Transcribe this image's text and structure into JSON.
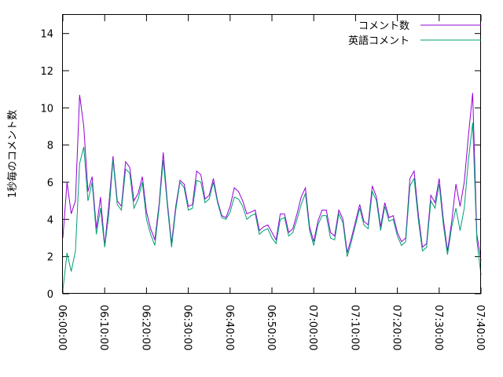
{
  "chart_data": {
    "type": "line",
    "ylabel": "1秒毎のコメント数",
    "xlim": [
      "06:00:00",
      "07:40:00"
    ],
    "ylim": [
      0,
      15
    ],
    "grid": false,
    "legend_position": "top-right",
    "x_tick_labels": [
      "06:00:00",
      "06:10:00",
      "06:20:00",
      "06:30:00",
      "06:40:00",
      "06:50:00",
      "07:00:00",
      "07:10:00",
      "07:20:00",
      "07:30:00",
      "07:40:00"
    ],
    "y_tick_labels": [
      "0",
      "2",
      "4",
      "6",
      "8",
      "10",
      "12",
      "14"
    ],
    "colors": {
      "comments": "#9400d3",
      "english": "#009e73"
    },
    "series": [
      {
        "name": "コメント数",
        "color": "#9400d3",
        "points": [
          [
            "06:00:00",
            3.0
          ],
          [
            "06:01:00",
            6.0
          ],
          [
            "06:02:00",
            4.3
          ],
          [
            "06:03:00",
            5.0
          ],
          [
            "06:04:00",
            10.7
          ],
          [
            "06:05:00",
            9.0
          ],
          [
            "06:06:00",
            5.5
          ],
          [
            "06:07:00",
            6.3
          ],
          [
            "06:08:00",
            3.5
          ],
          [
            "06:09:00",
            5.2
          ],
          [
            "06:10:00",
            2.6
          ],
          [
            "06:11:00",
            4.8
          ],
          [
            "06:12:00",
            7.4
          ],
          [
            "06:13:00",
            5.0
          ],
          [
            "06:14:00",
            4.7
          ],
          [
            "06:15:00",
            7.1
          ],
          [
            "06:16:00",
            6.8
          ],
          [
            "06:17:00",
            5.0
          ],
          [
            "06:18:00",
            5.4
          ],
          [
            "06:19:00",
            6.3
          ],
          [
            "06:20:00",
            4.4
          ],
          [
            "06:21:00",
            3.5
          ],
          [
            "06:22:00",
            2.9
          ],
          [
            "06:23:00",
            4.8
          ],
          [
            "06:24:00",
            7.6
          ],
          [
            "06:25:00",
            4.9
          ],
          [
            "06:26:00",
            2.7
          ],
          [
            "06:27:00",
            4.7
          ],
          [
            "06:28:00",
            6.1
          ],
          [
            "06:29:00",
            5.9
          ],
          [
            "06:30:00",
            4.7
          ],
          [
            "06:31:00",
            4.8
          ],
          [
            "06:32:00",
            6.6
          ],
          [
            "06:33:00",
            6.4
          ],
          [
            "06:34:00",
            5.1
          ],
          [
            "06:35:00",
            5.3
          ],
          [
            "06:36:00",
            6.2
          ],
          [
            "06:37:00",
            5.0
          ],
          [
            "06:38:00",
            4.2
          ],
          [
            "06:39:00",
            4.1
          ],
          [
            "06:40:00",
            4.7
          ],
          [
            "06:41:00",
            5.7
          ],
          [
            "06:42:00",
            5.5
          ],
          [
            "06:43:00",
            5.0
          ],
          [
            "06:44:00",
            4.3
          ],
          [
            "06:45:00",
            4.4
          ],
          [
            "06:46:00",
            4.5
          ],
          [
            "06:47:00",
            3.4
          ],
          [
            "06:48:00",
            3.6
          ],
          [
            "06:49:00",
            3.7
          ],
          [
            "06:50:00",
            3.3
          ],
          [
            "06:51:00",
            2.9
          ],
          [
            "06:52:00",
            4.3
          ],
          [
            "06:53:00",
            4.3
          ],
          [
            "06:54:00",
            3.3
          ],
          [
            "06:55:00",
            3.5
          ],
          [
            "06:56:00",
            4.3
          ],
          [
            "06:57:00",
            5.2
          ],
          [
            "06:58:00",
            5.7
          ],
          [
            "06:59:00",
            3.6
          ],
          [
            "07:00:00",
            2.8
          ],
          [
            "07:01:00",
            3.9
          ],
          [
            "07:02:00",
            4.5
          ],
          [
            "07:03:00",
            4.5
          ],
          [
            "07:04:00",
            3.3
          ],
          [
            "07:05:00",
            3.1
          ],
          [
            "07:06:00",
            4.5
          ],
          [
            "07:07:00",
            4.0
          ],
          [
            "07:08:00",
            2.2
          ],
          [
            "07:09:00",
            3.0
          ],
          [
            "07:10:00",
            3.9
          ],
          [
            "07:11:00",
            4.8
          ],
          [
            "07:12:00",
            3.9
          ],
          [
            "07:13:00",
            3.7
          ],
          [
            "07:14:00",
            5.8
          ],
          [
            "07:15:00",
            5.2
          ],
          [
            "07:16:00",
            3.6
          ],
          [
            "07:17:00",
            4.9
          ],
          [
            "07:18:00",
            4.1
          ],
          [
            "07:19:00",
            4.2
          ],
          [
            "07:20:00",
            3.3
          ],
          [
            "07:21:00",
            2.8
          ],
          [
            "07:22:00",
            3.0
          ],
          [
            "07:23:00",
            6.2
          ],
          [
            "07:24:00",
            6.6
          ],
          [
            "07:25:00",
            4.3
          ],
          [
            "07:26:00",
            2.5
          ],
          [
            "07:27:00",
            2.7
          ],
          [
            "07:28:00",
            5.3
          ],
          [
            "07:29:00",
            4.9
          ],
          [
            "07:30:00",
            6.2
          ],
          [
            "07:31:00",
            4.0
          ],
          [
            "07:32:00",
            2.3
          ],
          [
            "07:33:00",
            3.9
          ],
          [
            "07:34:00",
            5.9
          ],
          [
            "07:35:00",
            4.7
          ],
          [
            "07:36:00",
            6.0
          ],
          [
            "07:37:00",
            8.5
          ],
          [
            "07:38:00",
            10.8
          ],
          [
            "07:39:00",
            3.2
          ],
          [
            "07:40:00",
            1.8
          ]
        ]
      },
      {
        "name": "英語コメント",
        "color": "#009e73",
        "points": [
          [
            "06:00:00",
            0.2
          ],
          [
            "06:01:00",
            2.2
          ],
          [
            "06:02:00",
            1.2
          ],
          [
            "06:03:00",
            2.3
          ],
          [
            "06:04:00",
            7.0
          ],
          [
            "06:05:00",
            7.9
          ],
          [
            "06:06:00",
            5.0
          ],
          [
            "06:07:00",
            6.0
          ],
          [
            "06:08:00",
            3.2
          ],
          [
            "06:09:00",
            4.6
          ],
          [
            "06:10:00",
            2.5
          ],
          [
            "06:11:00",
            4.3
          ],
          [
            "06:12:00",
            7.2
          ],
          [
            "06:13:00",
            4.8
          ],
          [
            "06:14:00",
            4.5
          ],
          [
            "06:15:00",
            6.7
          ],
          [
            "06:16:00",
            6.5
          ],
          [
            "06:17:00",
            4.6
          ],
          [
            "06:18:00",
            5.1
          ],
          [
            "06:19:00",
            6.0
          ],
          [
            "06:20:00",
            4.0
          ],
          [
            "06:21:00",
            3.2
          ],
          [
            "06:22:00",
            2.6
          ],
          [
            "06:23:00",
            4.6
          ],
          [
            "06:24:00",
            7.2
          ],
          [
            "06:25:00",
            4.7
          ],
          [
            "06:26:00",
            2.5
          ],
          [
            "06:27:00",
            4.5
          ],
          [
            "06:28:00",
            6.0
          ],
          [
            "06:29:00",
            5.7
          ],
          [
            "06:30:00",
            4.5
          ],
          [
            "06:31:00",
            4.6
          ],
          [
            "06:32:00",
            6.1
          ],
          [
            "06:33:00",
            6.0
          ],
          [
            "06:34:00",
            4.9
          ],
          [
            "06:35:00",
            5.1
          ],
          [
            "06:36:00",
            6.0
          ],
          [
            "06:37:00",
            4.9
          ],
          [
            "06:38:00",
            4.1
          ],
          [
            "06:39:00",
            4.0
          ],
          [
            "06:40:00",
            4.4
          ],
          [
            "06:41:00",
            5.2
          ],
          [
            "06:42:00",
            5.1
          ],
          [
            "06:43:00",
            4.7
          ],
          [
            "06:44:00",
            4.0
          ],
          [
            "06:45:00",
            4.2
          ],
          [
            "06:46:00",
            4.3
          ],
          [
            "06:47:00",
            3.2
          ],
          [
            "06:48:00",
            3.4
          ],
          [
            "06:49:00",
            3.5
          ],
          [
            "06:50:00",
            3.0
          ],
          [
            "06:51:00",
            2.7
          ],
          [
            "06:52:00",
            4.0
          ],
          [
            "06:53:00",
            4.1
          ],
          [
            "06:54:00",
            3.1
          ],
          [
            "06:55:00",
            3.3
          ],
          [
            "06:56:00",
            4.0
          ],
          [
            "06:57:00",
            4.8
          ],
          [
            "06:58:00",
            5.4
          ],
          [
            "06:59:00",
            3.4
          ],
          [
            "07:00:00",
            2.6
          ],
          [
            "07:01:00",
            3.7
          ],
          [
            "07:02:00",
            4.2
          ],
          [
            "07:03:00",
            4.2
          ],
          [
            "07:04:00",
            3.0
          ],
          [
            "07:05:00",
            2.9
          ],
          [
            "07:06:00",
            4.3
          ],
          [
            "07:07:00",
            3.8
          ],
          [
            "07:08:00",
            2.0
          ],
          [
            "07:09:00",
            2.8
          ],
          [
            "07:10:00",
            3.7
          ],
          [
            "07:11:00",
            4.6
          ],
          [
            "07:12:00",
            3.7
          ],
          [
            "07:13:00",
            3.5
          ],
          [
            "07:14:00",
            5.5
          ],
          [
            "07:15:00",
            5.0
          ],
          [
            "07:16:00",
            3.4
          ],
          [
            "07:17:00",
            4.7
          ],
          [
            "07:18:00",
            3.9
          ],
          [
            "07:19:00",
            4.0
          ],
          [
            "07:20:00",
            3.1
          ],
          [
            "07:21:00",
            2.6
          ],
          [
            "07:22:00",
            2.8
          ],
          [
            "07:23:00",
            5.8
          ],
          [
            "07:24:00",
            6.2
          ],
          [
            "07:25:00",
            4.0
          ],
          [
            "07:26:00",
            2.3
          ],
          [
            "07:27:00",
            2.5
          ],
          [
            "07:28:00",
            5.0
          ],
          [
            "07:29:00",
            4.6
          ],
          [
            "07:30:00",
            5.9
          ],
          [
            "07:31:00",
            3.7
          ],
          [
            "07:32:00",
            2.1
          ],
          [
            "07:33:00",
            3.6
          ],
          [
            "07:34:00",
            4.6
          ],
          [
            "07:35:00",
            3.4
          ],
          [
            "07:36:00",
            4.6
          ],
          [
            "07:37:00",
            7.2
          ],
          [
            "07:38:00",
            9.2
          ],
          [
            "07:39:00",
            2.9
          ],
          [
            "07:40:00",
            1.0
          ]
        ]
      }
    ]
  }
}
